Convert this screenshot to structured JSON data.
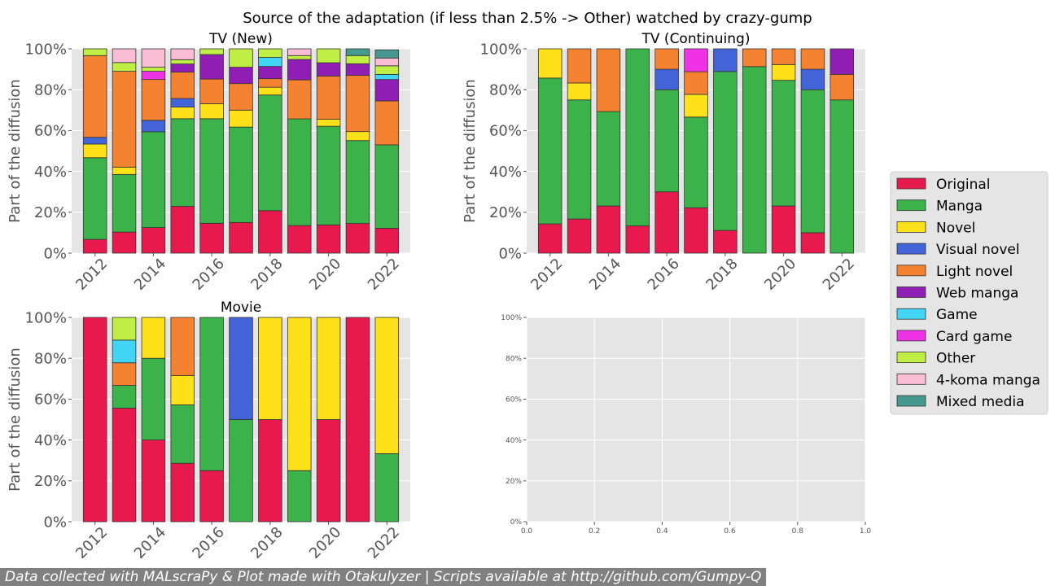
{
  "figure": {
    "title": "Source of the adaptation (if less than 2.5% -> Other) watched by crazy-gump",
    "footer": "Data collected with MALscraPy & Plot made with Otakulyzer | Scripts available at http://github.com/Gumpy-Q"
  },
  "colors": {
    "Original": "#e8194c",
    "Manga": "#3cb34a",
    "Novel": "#ffe119",
    "Visual novel": "#4363d8",
    "Light novel": "#f58231",
    "Web manga": "#911eb4",
    "Game": "#42d4f4",
    "Card game": "#f032e6",
    "Other": "#bfef45",
    "4-koma manga": "#fabed4",
    "Mixed media": "#469990"
  },
  "legend": [
    "Original",
    "Manga",
    "Novel",
    "Visual novel",
    "Light novel",
    "Web manga",
    "Game",
    "Card game",
    "Other",
    "4-koma manga",
    "Mixed media"
  ],
  "chart_data": [
    {
      "type": "bar",
      "stacked": true,
      "title": "TV (New)",
      "ylabel": "Part of the diffusion",
      "ylim": [
        0,
        100
      ],
      "yticks": [
        "0%",
        "20%",
        "40%",
        "60%",
        "80%",
        "100%"
      ],
      "xticks": [
        "2012",
        "2014",
        "2016",
        "2018",
        "2020",
        "2022"
      ],
      "categories": [
        "2012",
        "2013",
        "2014",
        "2015",
        "2016",
        "2017",
        "2018",
        "2019",
        "2020",
        "2021",
        "2022"
      ],
      "series": [
        {
          "name": "Original",
          "values": [
            6.7,
            10.3,
            12.5,
            22.9,
            14.6,
            15.0,
            20.8,
            13.5,
            13.8,
            14.5,
            12.2
          ]
        },
        {
          "name": "Manga",
          "values": [
            40.0,
            28.2,
            46.9,
            42.9,
            51.2,
            46.7,
            56.6,
            52.2,
            48.3,
            40.6,
            40.8
          ]
        },
        {
          "name": "Novel",
          "values": [
            6.7,
            3.6,
            0,
            5.7,
            7.3,
            8.3,
            3.8,
            0,
            3.4,
            4.4,
            0
          ]
        },
        {
          "name": "Visual novel",
          "values": [
            3.3,
            0,
            5.6,
            4.2,
            0,
            0,
            0,
            0,
            0,
            0,
            0
          ]
        },
        {
          "name": "Light novel",
          "values": [
            40.0,
            46.9,
            20.0,
            12.9,
            12.1,
            13.0,
            4.2,
            19.1,
            21.2,
            27.5,
            21.5
          ]
        },
        {
          "name": "Web manga",
          "values": [
            0,
            0,
            0,
            4.0,
            12.0,
            8.0,
            6.0,
            10.0,
            6.5,
            5.7,
            10.5
          ]
        },
        {
          "name": "Game",
          "values": [
            0,
            0,
            0,
            0,
            0,
            0,
            4.4,
            0,
            0,
            0,
            2.5
          ]
        },
        {
          "name": "Card game",
          "values": [
            0,
            0,
            4.0,
            0,
            0,
            0,
            0,
            0,
            0,
            0,
            0
          ]
        },
        {
          "name": "Other",
          "values": [
            3.3,
            4.3,
            2.0,
            2.1,
            2.8,
            9.0,
            4.2,
            1.9,
            6.8,
            4.0,
            4.2
          ]
        },
        {
          "name": "4-koma manga",
          "values": [
            0,
            6.7,
            9.0,
            5.3,
            0,
            0,
            0,
            3.3,
            0,
            0,
            3.8
          ]
        },
        {
          "name": "Mixed media",
          "values": [
            0,
            0,
            0,
            0,
            0,
            0,
            0,
            0,
            0,
            3.3,
            4.0
          ]
        }
      ]
    },
    {
      "type": "bar",
      "stacked": true,
      "title": "TV (Continuing)",
      "ylabel": "Part of the diffusion",
      "ylim": [
        0,
        100
      ],
      "yticks": [
        "0%",
        "20%",
        "40%",
        "60%",
        "80%",
        "100%"
      ],
      "xticks": [
        "2012",
        "2014",
        "2016",
        "2018",
        "2020",
        "2022"
      ],
      "categories": [
        "2012",
        "2013",
        "2014",
        "2015",
        "2016",
        "2017",
        "2018",
        "2019",
        "2020",
        "2021",
        "2022"
      ],
      "series": [
        {
          "name": "Original",
          "values": [
            14.3,
            16.7,
            23.1,
            13.3,
            30.0,
            22.2,
            11.1,
            0,
            23.1,
            10.0,
            0
          ]
        },
        {
          "name": "Manga",
          "values": [
            71.4,
            58.3,
            46.2,
            86.7,
            50.0,
            44.4,
            77.8,
            91.3,
            61.5,
            70.0,
            75.0
          ]
        },
        {
          "name": "Novel",
          "values": [
            14.3,
            8.3,
            0,
            0,
            0,
            11.1,
            0,
            0,
            7.7,
            0,
            0
          ]
        },
        {
          "name": "Visual novel",
          "values": [
            0,
            0,
            0,
            0,
            10.0,
            0,
            11.1,
            0,
            0,
            10.0,
            0
          ]
        },
        {
          "name": "Light novel",
          "values": [
            0,
            16.7,
            30.7,
            0,
            10.0,
            11.1,
            0,
            8.7,
            7.7,
            10.0,
            12.5
          ]
        },
        {
          "name": "Web manga",
          "values": [
            0,
            0,
            0,
            0,
            0,
            0,
            0,
            0,
            0,
            0,
            12.5
          ]
        },
        {
          "name": "Game",
          "values": [
            0,
            0,
            0,
            0,
            0,
            0,
            0,
            0,
            0,
            0,
            0
          ]
        },
        {
          "name": "Card game",
          "values": [
            0,
            0,
            0,
            0,
            0,
            11.2,
            0,
            0,
            0,
            0,
            0
          ]
        },
        {
          "name": "Other",
          "values": [
            0,
            0,
            0,
            0,
            0,
            0,
            0,
            0,
            0,
            0,
            0
          ]
        },
        {
          "name": "4-koma manga",
          "values": [
            0,
            0,
            0,
            0,
            0,
            0,
            0,
            0,
            0,
            0,
            0
          ]
        },
        {
          "name": "Mixed media",
          "values": [
            0,
            0,
            0,
            0,
            0,
            0,
            0,
            0,
            0,
            0,
            0
          ]
        }
      ]
    },
    {
      "type": "bar",
      "stacked": true,
      "title": "Movie",
      "ylabel": "Part of the diffusion",
      "ylim": [
        0,
        100
      ],
      "yticks": [
        "0%",
        "20%",
        "40%",
        "60%",
        "80%",
        "100%"
      ],
      "xticks": [
        "2012",
        "2014",
        "2016",
        "2018",
        "2020",
        "2022"
      ],
      "categories": [
        "2012",
        "2013",
        "2014",
        "2015",
        "2016",
        "2017",
        "2018",
        "2019",
        "2020",
        "2021",
        "2022"
      ],
      "series": [
        {
          "name": "Original",
          "values": [
            100,
            55.6,
            40.0,
            28.6,
            25.0,
            0,
            50.0,
            0,
            50.0,
            100,
            0
          ]
        },
        {
          "name": "Manga",
          "values": [
            0,
            11.1,
            40.0,
            28.6,
            75.0,
            50.0,
            0,
            25.0,
            0,
            0,
            33.3
          ]
        },
        {
          "name": "Novel",
          "values": [
            0,
            0,
            20.0,
            14.3,
            0,
            0,
            50.0,
            75.0,
            50.0,
            0,
            66.7
          ]
        },
        {
          "name": "Visual novel",
          "values": [
            0,
            0,
            0,
            0,
            0,
            50.0,
            0,
            0,
            0,
            0,
            0
          ]
        },
        {
          "name": "Light novel",
          "values": [
            0,
            11.1,
            0,
            28.5,
            0,
            0,
            0,
            0,
            0,
            0,
            0
          ]
        },
        {
          "name": "Web manga",
          "values": [
            0,
            0,
            0,
            0,
            0,
            0,
            0,
            0,
            0,
            0,
            0
          ]
        },
        {
          "name": "Game",
          "values": [
            0,
            11.1,
            0,
            0,
            0,
            0,
            0,
            0,
            0,
            0,
            0
          ]
        },
        {
          "name": "Card game",
          "values": [
            0,
            0,
            0,
            0,
            0,
            0,
            0,
            0,
            0,
            0,
            0
          ]
        },
        {
          "name": "Other",
          "values": [
            0,
            11.1,
            0,
            0,
            0,
            0,
            0,
            0,
            0,
            0,
            0
          ]
        },
        {
          "name": "4-koma manga",
          "values": [
            0,
            0,
            0,
            0,
            0,
            0,
            0,
            0,
            0,
            0,
            0
          ]
        },
        {
          "name": "Mixed media",
          "values": [
            0,
            0,
            0,
            0,
            0,
            0,
            0,
            0,
            0,
            0,
            0
          ]
        }
      ]
    },
    {
      "type": "bar",
      "empty": true,
      "title": "",
      "xlim": [
        0,
        1
      ],
      "ylim": [
        0,
        100
      ],
      "xticks": [
        "0.0",
        "0.2",
        "0.4",
        "0.6",
        "0.8",
        "1.0"
      ],
      "yticks": [
        "0%",
        "20%",
        "40%",
        "60%",
        "80%",
        "100%"
      ]
    }
  ]
}
